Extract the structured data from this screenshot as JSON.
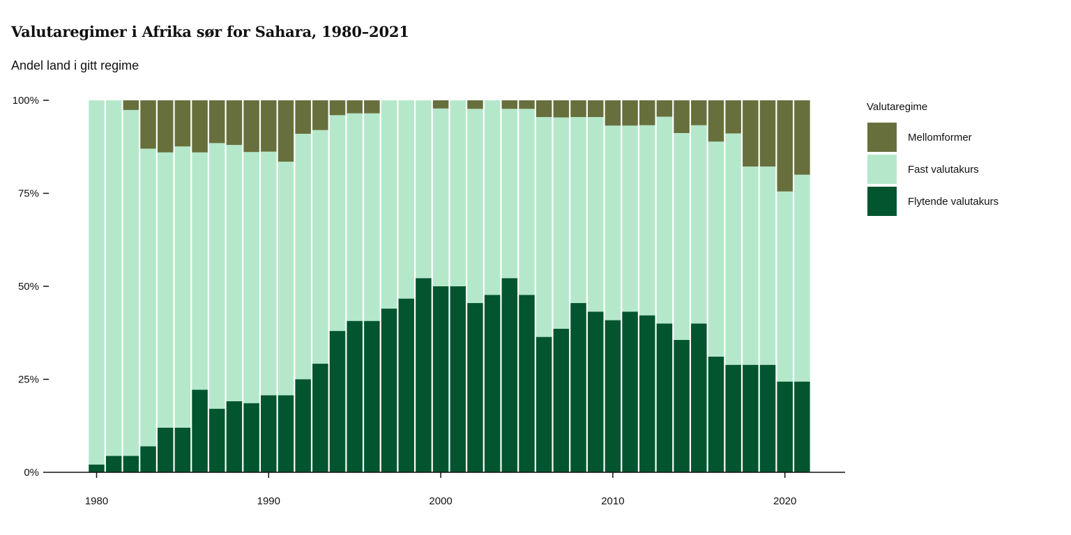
{
  "title": "Valutaregimer i Afrika sør for Sahara, 1980–2021",
  "subtitle": "Andel land i gitt regime",
  "legend": {
    "title": "Valutaregime"
  },
  "colors": {
    "floating": "#035530",
    "fixed": "#b5e8cb",
    "intermediate": "#67703d"
  },
  "chart_data": {
    "type": "bar",
    "stacked": true,
    "x": [
      1980,
      1981,
      1982,
      1983,
      1984,
      1985,
      1986,
      1987,
      1988,
      1989,
      1990,
      1991,
      1992,
      1993,
      1994,
      1995,
      1996,
      1997,
      1998,
      1999,
      2000,
      2001,
      2002,
      2003,
      2004,
      2005,
      2006,
      2007,
      2008,
      2009,
      2010,
      2011,
      2012,
      2013,
      2014,
      2015,
      2016,
      2017,
      2018,
      2019,
      2020,
      2021
    ],
    "x_ticks": [
      "1980",
      "1990",
      "2000",
      "2010",
      "2020"
    ],
    "y_ticks": [
      "0%",
      "25%",
      "50%",
      "75%",
      "100%"
    ],
    "ylim": [
      0,
      100
    ],
    "legend_position": "right",
    "series": [
      {
        "name": "Flytende valutakurs",
        "color_key": "floating",
        "values": [
          2.1,
          4.4,
          4.4,
          7.0,
          12.0,
          12.0,
          22.2,
          17.1,
          19.1,
          18.6,
          20.7,
          20.7,
          25.0,
          29.2,
          38.0,
          40.7,
          40.7,
          44.0,
          46.7,
          52.2,
          50.0,
          50.0,
          45.5,
          47.7,
          52.2,
          47.7,
          36.4,
          38.6,
          45.5,
          43.2,
          40.9,
          43.2,
          42.2,
          40.0,
          35.6,
          40.0,
          31.1,
          28.9,
          28.9,
          28.9,
          24.4,
          24.4
        ]
      },
      {
        "name": "Fast valutakurs",
        "color_key": "fixed",
        "values": [
          97.9,
          95.6,
          93.0,
          80.0,
          74.0,
          75.6,
          63.8,
          71.4,
          68.9,
          67.5,
          65.5,
          62.8,
          66.0,
          62.8,
          58.0,
          55.8,
          55.8,
          56.0,
          53.3,
          47.8,
          47.8,
          50.0,
          52.2,
          52.3,
          45.5,
          50.0,
          59.1,
          56.8,
          50.0,
          52.3,
          52.3,
          50.0,
          51.1,
          55.6,
          55.6,
          53.3,
          57.8,
          62.2,
          53.3,
          53.3,
          51.1,
          55.6
        ]
      },
      {
        "name": "Mellomformer",
        "color_key": "intermediate",
        "values": [
          0,
          0,
          2.6,
          13.0,
          14.0,
          12.4,
          14.0,
          11.5,
          12.0,
          13.9,
          13.8,
          16.5,
          9.0,
          8.0,
          4.0,
          3.5,
          3.5,
          0,
          0,
          0,
          2.2,
          0,
          2.3,
          0,
          2.3,
          2.3,
          4.5,
          4.6,
          4.5,
          4.5,
          6.8,
          6.8,
          6.7,
          4.4,
          8.8,
          6.7,
          11.1,
          8.9,
          17.8,
          17.8,
          24.5,
          20.0
        ]
      }
    ]
  }
}
